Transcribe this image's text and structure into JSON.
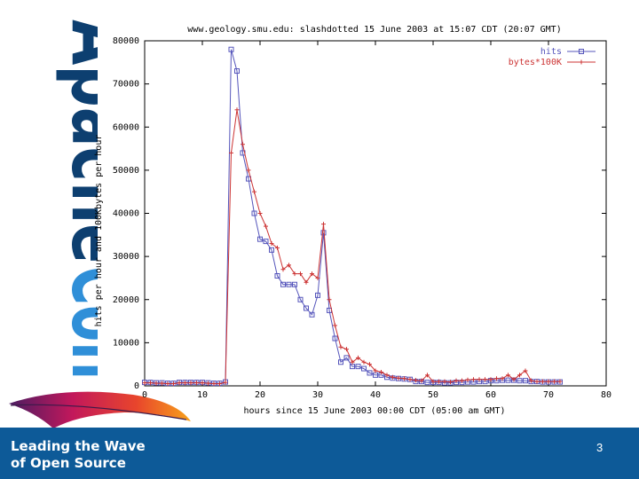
{
  "logo": {
    "apache": "Apache",
    "con": "Con",
    "colors": {
      "apache": "#0d3f70",
      "con": "#2f8fd8"
    }
  },
  "footer": {
    "tagline_line1": "Leading the Wave",
    "tagline_line2": "of Open Source",
    "page_number": "3",
    "background": "#0d5a98"
  },
  "chart_data": {
    "type": "line",
    "title": "www.geology.smu.edu: slashdotted 15 June 2003 at 15:07 CDT (20:07 GMT)",
    "xlabel": "hours since 15 June 2003 00:00 CDT  (05:00 am GMT)",
    "ylabel": "hits per hour and 100Kbytes per hour",
    "xlim": [
      0,
      80
    ],
    "ylim": [
      0,
      80000
    ],
    "xticks": [
      "0",
      "10",
      "20",
      "30",
      "40",
      "50",
      "60",
      "70",
      "80"
    ],
    "yticks": [
      "0",
      "10000",
      "20000",
      "30000",
      "40000",
      "50000",
      "60000",
      "70000",
      "80000"
    ],
    "legend_position": "top-right",
    "series": [
      {
        "name": "hits",
        "color": "#5555bb",
        "marker": "square",
        "x": [
          0,
          1,
          2,
          3,
          4,
          5,
          6,
          7,
          8,
          9,
          10,
          11,
          12,
          13,
          14,
          15,
          16,
          17,
          18,
          19,
          20,
          21,
          22,
          23,
          24,
          25,
          26,
          27,
          28,
          29,
          30,
          31,
          32,
          33,
          34,
          35,
          36,
          37,
          38,
          39,
          40,
          41,
          42,
          43,
          44,
          45,
          46,
          47,
          48,
          49,
          50,
          51,
          52,
          53,
          54,
          55,
          56,
          57,
          58,
          59,
          60,
          61,
          62,
          63,
          64,
          65,
          66,
          67,
          68,
          69,
          70,
          71,
          72
        ],
        "y": [
          800,
          800,
          700,
          700,
          600,
          600,
          800,
          800,
          800,
          800,
          800,
          700,
          600,
          600,
          900,
          78000,
          73000,
          54000,
          48000,
          40000,
          34000,
          33500,
          31500,
          25500,
          23500,
          23500,
          23500,
          20000,
          18000,
          16500,
          21000,
          35500,
          17500,
          11000,
          5500,
          6500,
          4500,
          4500,
          4000,
          3000,
          2500,
          2500,
          2000,
          1800,
          1700,
          1600,
          1500,
          1000,
          1000,
          800,
          800,
          800,
          700,
          700,
          800,
          800,
          900,
          900,
          1000,
          1000,
          1200,
          1200,
          1300,
          1300,
          1300,
          1200,
          1200,
          1000,
          1000,
          900,
          900,
          900,
          900
        ]
      },
      {
        "name": "bytes*100K",
        "color": "#cc3333",
        "marker": "plus",
        "x": [
          0,
          1,
          2,
          3,
          4,
          5,
          6,
          7,
          8,
          9,
          10,
          11,
          12,
          13,
          14,
          15,
          16,
          17,
          18,
          19,
          20,
          21,
          22,
          23,
          24,
          25,
          26,
          27,
          28,
          29,
          30,
          31,
          32,
          33,
          34,
          35,
          36,
          37,
          38,
          39,
          40,
          41,
          42,
          43,
          44,
          45,
          46,
          47,
          48,
          49,
          50,
          51,
          52,
          53,
          54,
          55,
          56,
          57,
          58,
          59,
          60,
          61,
          62,
          63,
          64,
          65,
          66,
          67,
          68,
          69,
          70,
          71,
          72
        ],
        "y": [
          700,
          700,
          600,
          600,
          500,
          500,
          700,
          700,
          700,
          700,
          700,
          600,
          500,
          500,
          800,
          54000,
          64000,
          56000,
          50000,
          45000,
          40000,
          37000,
          33000,
          32000,
          27000,
          28000,
          26000,
          26000,
          24000,
          26000,
          25000,
          37500,
          20000,
          14000,
          9000,
          8500,
          5500,
          6500,
          5500,
          5000,
          3500,
          3200,
          2500,
          2000,
          1800,
          1700,
          1500,
          1300,
          1200,
          2500,
          1000,
          1000,
          1000,
          900,
          1200,
          1200,
          1400,
          1500,
          1500,
          1500,
          1500,
          1700,
          1700,
          2500,
          1500,
          2500,
          3500,
          1200,
          1000,
          1000,
          1000,
          1000,
          1000
        ]
      }
    ]
  }
}
